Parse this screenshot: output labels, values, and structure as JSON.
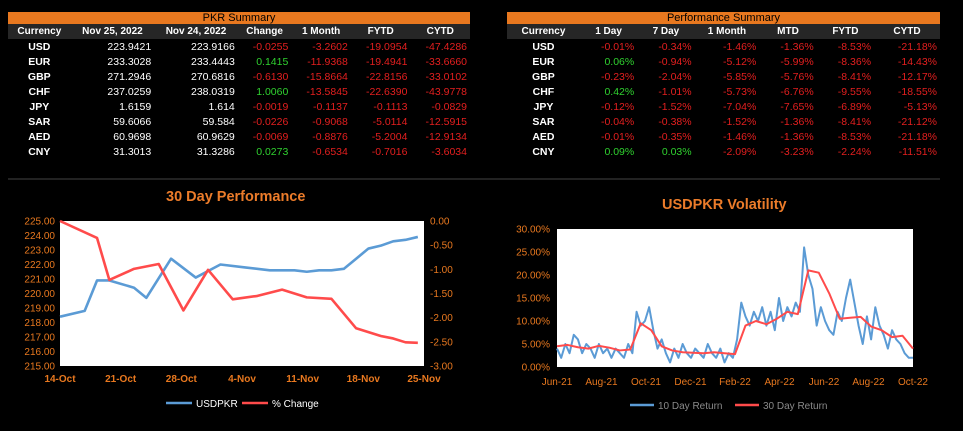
{
  "pkr_summary": {
    "title": "PKR Summary",
    "columns": [
      "Currency",
      "Nov 25, 2022",
      "Nov 24, 2022",
      "Change",
      "1 Month",
      "FYTD",
      "CYTD"
    ],
    "rows": [
      [
        "USD",
        "223.9421",
        "223.9166",
        "-0.0255",
        "-3.2602",
        "-19.0954",
        "-47.4286"
      ],
      [
        "EUR",
        "233.3028",
        "233.4443",
        "0.1415",
        "-11.9368",
        "-19.4941",
        "-33.6660"
      ],
      [
        "GBP",
        "271.2946",
        "270.6816",
        "-0.6130",
        "-15.8664",
        "-22.8156",
        "-33.0102"
      ],
      [
        "CHF",
        "237.0259",
        "238.0319",
        "1.0060",
        "-13.5845",
        "-22.6390",
        "-43.9778"
      ],
      [
        "JPY",
        "1.6159",
        "1.614",
        "-0.0019",
        "-0.1137",
        "-0.1113",
        "-0.0829"
      ],
      [
        "SAR",
        "59.6066",
        "59.584",
        "-0.0226",
        "-0.9068",
        "-5.0114",
        "-12.5915"
      ],
      [
        "AED",
        "60.9698",
        "60.9629",
        "-0.0069",
        "-0.8876",
        "-5.2004",
        "-12.9134"
      ],
      [
        "CNY",
        "31.3013",
        "31.3286",
        "0.0273",
        "-0.6534",
        "-0.7016",
        "-3.6034"
      ]
    ]
  },
  "performance_summary": {
    "title": "Performance Summary",
    "columns": [
      "Currency",
      "1 Day",
      "7 Day",
      "1 Month",
      "MTD",
      "FYTD",
      "CYTD"
    ],
    "rows": [
      [
        "USD",
        "-0.01%",
        "-0.34%",
        "-1.46%",
        "-1.36%",
        "-8.53%",
        "-21.18%"
      ],
      [
        "EUR",
        "0.06%",
        "-0.94%",
        "-5.12%",
        "-5.99%",
        "-8.36%",
        "-14.43%"
      ],
      [
        "GBP",
        "-0.23%",
        "-2.04%",
        "-5.85%",
        "-5.76%",
        "-8.41%",
        "-12.17%"
      ],
      [
        "CHF",
        "0.42%",
        "-1.01%",
        "-5.73%",
        "-6.76%",
        "-9.55%",
        "-18.55%"
      ],
      [
        "JPY",
        "-0.12%",
        "-1.52%",
        "-7.04%",
        "-7.65%",
        "-6.89%",
        "-5.13%"
      ],
      [
        "SAR",
        "-0.04%",
        "-0.38%",
        "-1.52%",
        "-1.36%",
        "-8.41%",
        "-21.12%"
      ],
      [
        "AED",
        "-0.01%",
        "-0.35%",
        "-1.46%",
        "-1.36%",
        "-8.53%",
        "-21.18%"
      ],
      [
        "CNY",
        "0.09%",
        "0.03%",
        "-2.09%",
        "-3.23%",
        "-2.24%",
        "-11.51%"
      ]
    ]
  },
  "colors": {
    "accent": "#ec7c2a",
    "positive": "#2fd12f",
    "negative": "#e41f1f",
    "series_blue": "#5b9bd5",
    "series_red": "#ff4b4b"
  },
  "chart_data": [
    {
      "type": "line",
      "title": "30 Day Performance",
      "x_ticks": [
        "14-Oct",
        "21-Oct",
        "28-Oct",
        "4-Nov",
        "11-Nov",
        "18-Nov",
        "25-Nov"
      ],
      "y_ticks": [
        "225.00",
        "224.00",
        "223.00",
        "222.00",
        "221.00",
        "220.00",
        "219.00",
        "218.00",
        "217.00",
        "216.00",
        "215.00"
      ],
      "y2_ticks": [
        "0.00",
        "-0.50",
        "-1.00",
        "-1.50",
        "-2.00",
        "-2.50",
        "-3.00"
      ],
      "ylim": [
        215,
        225
      ],
      "y2lim": [
        -3.0,
        0.0
      ],
      "series": [
        {
          "name": "USDPKR",
          "axis": "left",
          "x": [
            0,
            4,
            6,
            8,
            12,
            14,
            18,
            22,
            26,
            30,
            34,
            38,
            40,
            42,
            44,
            46,
            48,
            50,
            52,
            54,
            56,
            58
          ],
          "values": [
            218.4,
            218.8,
            220.9,
            220.9,
            220.4,
            219.7,
            222.4,
            221.1,
            222.0,
            221.8,
            221.6,
            221.6,
            221.5,
            221.6,
            221.6,
            221.7,
            222.4,
            223.1,
            223.3,
            223.6,
            223.7,
            223.9
          ]
        },
        {
          "name": "% Change",
          "axis": "right",
          "x": [
            0,
            6,
            8,
            12,
            16,
            20,
            24,
            28,
            32,
            36,
            40,
            44,
            48,
            52,
            54,
            56,
            58
          ],
          "values": [
            0.0,
            -0.35,
            -1.22,
            -0.99,
            -0.89,
            -1.85,
            -1.01,
            -1.62,
            -1.55,
            -1.42,
            -1.58,
            -1.61,
            -2.22,
            -2.38,
            -2.43,
            -2.51,
            -2.52
          ]
        }
      ]
    },
    {
      "type": "line",
      "title": "USDPKR Volatility",
      "x_ticks": [
        "Jun-21",
        "Aug-21",
        "Oct-21",
        "Dec-21",
        "Feb-22",
        "Apr-22",
        "Jun-22",
        "Aug-22",
        "Oct-22"
      ],
      "y_ticks": [
        "30.00%",
        "25.00%",
        "20.00%",
        "15.00%",
        "10.00%",
        "5.00%",
        "0.00%"
      ],
      "ylim": [
        0,
        30
      ],
      "series": [
        {
          "name": "10 Day Return",
          "x": [
            0,
            0.2,
            0.4,
            0.6,
            0.8,
            1.0,
            1.2,
            1.4,
            1.6,
            1.8,
            2.0,
            2.2,
            2.4,
            2.6,
            2.8,
            3.0,
            3.2,
            3.4,
            3.6,
            3.8,
            4.0,
            4.2,
            4.4,
            4.6,
            4.8,
            5.0,
            5.2,
            5.4,
            5.6,
            5.8,
            6.0,
            6.2,
            6.4,
            6.6,
            6.8,
            7.0,
            7.2,
            7.4,
            7.6,
            7.8,
            8.0,
            8.2,
            8.4,
            8.6,
            8.8,
            9.0,
            9.2,
            9.4,
            9.6,
            9.8,
            10.0,
            10.2,
            10.4,
            10.6,
            10.8,
            11.0,
            11.2,
            11.4,
            11.6,
            11.8,
            12.0,
            12.2,
            12.4,
            12.6,
            12.8,
            13.0,
            13.2,
            13.4,
            13.6,
            13.8,
            14.0,
            14.2,
            14.4,
            14.6,
            14.8,
            15.0,
            15.2,
            15.4,
            15.6,
            15.8,
            16.0,
            16.2,
            16.4,
            16.6,
            16.8,
            17.0
          ],
          "values": [
            4,
            2,
            5,
            3,
            7,
            6,
            3,
            5,
            4,
            2,
            5,
            3,
            4,
            2,
            4,
            3,
            2,
            5,
            3,
            12,
            9,
            10,
            13,
            8,
            4,
            6,
            3,
            1,
            4,
            2,
            5,
            3,
            2,
            4,
            3,
            2,
            5,
            3,
            2,
            4,
            1,
            3,
            2,
            6,
            14,
            11,
            9,
            12,
            10,
            13,
            9,
            12,
            8,
            15,
            10,
            13,
            11,
            14,
            12,
            26,
            20,
            17,
            9,
            13,
            10,
            8,
            7,
            12,
            10,
            15,
            19,
            14,
            9,
            5,
            11,
            6,
            13,
            9,
            7,
            4,
            8,
            6,
            5,
            3,
            2,
            2
          ]
        },
        {
          "name": "30 Day Return",
          "x": [
            0,
            0.5,
            1,
            1.5,
            2,
            2.5,
            3,
            3.5,
            4,
            4.5,
            5,
            5.5,
            6,
            6.5,
            7,
            7.5,
            8,
            8.5,
            9,
            9.5,
            10,
            10.5,
            11,
            11.5,
            12,
            12.5,
            13,
            13.5,
            14,
            14.5,
            15,
            15.5,
            16,
            16.5,
            17
          ],
          "values": [
            4.5,
            4.8,
            4.3,
            4.0,
            4.6,
            4.2,
            3.6,
            3.8,
            9.5,
            8.0,
            4.5,
            3.6,
            3.2,
            3.1,
            3.0,
            3.2,
            3.0,
            2.8,
            9.0,
            10.0,
            9.3,
            10.5,
            12.0,
            11.5,
            21.0,
            20.5,
            16.0,
            10.5,
            10.7,
            10.9,
            8.8,
            8.0,
            6.5,
            6.8,
            4.0
          ]
        }
      ]
    }
  ]
}
